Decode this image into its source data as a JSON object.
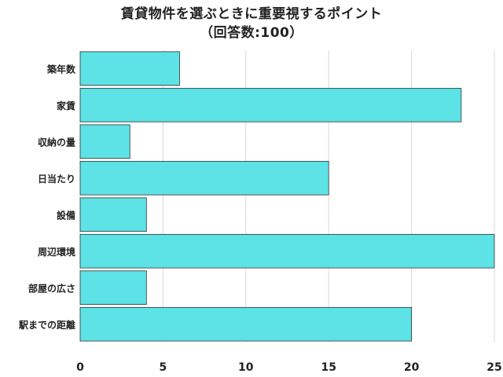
{
  "title_line1": "賃貸物件を選ぶときに重要視するポイント",
  "title_line2": "（回答数:100）",
  "chart_data": {
    "type": "bar",
    "orientation": "horizontal",
    "title": "賃貸物件を選ぶときに重要視するポイント",
    "subtitle": "（回答数:100）",
    "categories": [
      "築年数",
      "家賃",
      "収納の量",
      "日当たり",
      "設備",
      "周辺環境",
      "部屋の広さ",
      "駅までの距離"
    ],
    "values": [
      6,
      23,
      3,
      15,
      4,
      25,
      4,
      20
    ],
    "xlim": [
      0,
      25
    ],
    "xticks": [
      "0",
      "5",
      "10",
      "15",
      "20",
      "25"
    ],
    "xlabel": "",
    "ylabel": "",
    "grid": true,
    "bar_color": "#5de2e6",
    "bar_edge_color": "#333333",
    "grid_color": "#d9d9d9"
  }
}
